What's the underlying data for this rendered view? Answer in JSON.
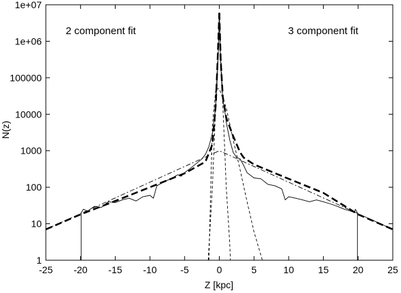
{
  "chart_data": {
    "type": "line",
    "title": "",
    "xlabel": "Z [kpc]",
    "ylabel": "N(z)",
    "xlim": [
      -25,
      25
    ],
    "ylim": [
      1,
      10000000
    ],
    "yscale": "log",
    "grid": false,
    "legend": "none",
    "x_ticks": [
      -25,
      -20,
      -15,
      -10,
      -5,
      0,
      5,
      10,
      15,
      20,
      25
    ],
    "x_tick_labels": [
      "-25",
      "-20",
      "-15",
      "-10",
      "-5",
      "0",
      "5",
      "10",
      "15",
      "20",
      "25"
    ],
    "y_ticks": [
      1,
      10,
      100,
      1000,
      10000,
      100000,
      1000000,
      10000000
    ],
    "y_tick_labels": [
      "1",
      "10",
      "100",
      "1000",
      "10000",
      "100000",
      "1e+06",
      "1e+07"
    ],
    "annotations": [
      {
        "text": "2 component fit",
        "position": "top-left"
      },
      {
        "text": "3 component fit",
        "position": "top-right"
      }
    ],
    "series": [
      {
        "style": "solid-thin",
        "description": "observed",
        "x": [
          -19.9,
          -19.9,
          -19.6,
          -19,
          -18,
          -17,
          -16,
          -15,
          -14,
          -13,
          -12,
          -11,
          -10,
          -9.5,
          -9,
          -8,
          -7,
          -6,
          -5.5,
          -5,
          -4,
          -3,
          -2.5,
          -2,
          -1.5,
          -1,
          -0.7,
          -0.5,
          -0.3,
          -0.1,
          0,
          0.1,
          0.3,
          0.5,
          0.8,
          1,
          1.5,
          2,
          2.5,
          3,
          3.5,
          4,
          5,
          6,
          7,
          8,
          9,
          9.5,
          10,
          11,
          12,
          13,
          14,
          15,
          16,
          17,
          18,
          19,
          19.5,
          19.6,
          19.9,
          19.9
        ],
        "y": [
          1,
          20,
          25,
          22,
          30,
          28,
          40,
          38,
          45,
          50,
          42,
          55,
          60,
          50,
          110,
          140,
          170,
          220,
          200,
          250,
          350,
          500,
          600,
          800,
          1300,
          3000,
          8000,
          20000,
          100000,
          800000,
          6000000,
          800000,
          100000,
          25000,
          12000,
          6000,
          2000,
          900,
          650,
          600,
          400,
          250,
          180,
          170,
          120,
          110,
          90,
          45,
          55,
          50,
          45,
          40,
          45,
          40,
          35,
          30,
          25,
          22,
          20,
          25,
          20,
          1
        ]
      },
      {
        "style": "dashed-thick",
        "description": "2 component fit (left)",
        "x": [
          -25,
          -20,
          -15,
          -10,
          -5,
          -2,
          -1,
          -0.5,
          -0.2,
          0
        ],
        "y": [
          7,
          18,
          42,
          100,
          240,
          500,
          1500,
          20000,
          500000,
          6000000
        ]
      },
      {
        "style": "dashed-thick",
        "description": "3 component fit (right)",
        "x": [
          0,
          0.2,
          0.5,
          1,
          2,
          3,
          3.5,
          5,
          10,
          15,
          20,
          25
        ],
        "y": [
          6000000,
          300000,
          30000,
          8000,
          2500,
          900,
          650,
          420,
          170,
          70,
          18,
          7
        ]
      },
      {
        "style": "dashdot-thin",
        "description": "component",
        "x": [
          -25,
          0,
          25
        ],
        "y": [
          7,
          1000,
          7
        ]
      },
      {
        "style": "dashed-thin",
        "description": "component",
        "x": [
          -1.6,
          -1,
          -0.5,
          0,
          0.5,
          1,
          1.5,
          1.6
        ],
        "y": [
          1,
          100,
          20000,
          5000000,
          20000,
          100,
          3,
          1
        ]
      },
      {
        "style": "dashed-thin",
        "description": "component",
        "x": [
          -1.5,
          -1,
          -0.5,
          0,
          1,
          2,
          3,
          4,
          5,
          6.2
        ],
        "y": [
          1,
          5000,
          50000,
          50000,
          15000,
          2000,
          300,
          40,
          6,
          1
        ]
      }
    ]
  }
}
